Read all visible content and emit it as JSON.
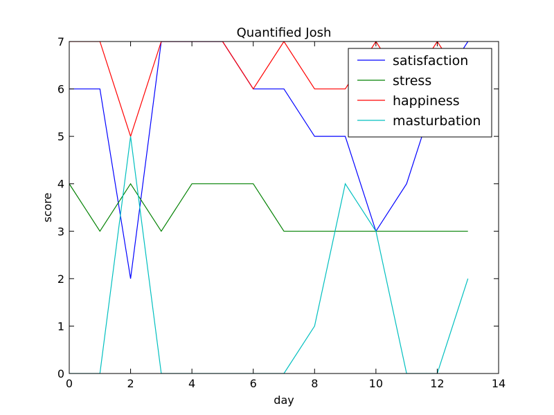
{
  "chart_data": {
    "type": "line",
    "title": "Quantified Josh",
    "xlabel": "day",
    "ylabel": "score",
    "xlim": [
      0,
      14
    ],
    "ylim": [
      0,
      7
    ],
    "x_ticks": [
      0,
      2,
      4,
      6,
      8,
      10,
      12,
      14
    ],
    "y_ticks": [
      0,
      1,
      2,
      3,
      4,
      5,
      6,
      7
    ],
    "grid": false,
    "legend_position": "top-right",
    "x": [
      0,
      1,
      2,
      3,
      4,
      5,
      6,
      7,
      8,
      9,
      10,
      11,
      12,
      13
    ],
    "series": [
      {
        "name": "satisfaction",
        "color": "#0000ff",
        "values": [
          6,
          6,
          2,
          7,
          7,
          7,
          6,
          6,
          5,
          5,
          3,
          4,
          6,
          7
        ]
      },
      {
        "name": "stress",
        "color": "#008000",
        "values": [
          4,
          3,
          4,
          3,
          4,
          4,
          4,
          3,
          3,
          3,
          3,
          3,
          3,
          3
        ]
      },
      {
        "name": "happiness",
        "color": "#ff0000",
        "values": [
          7,
          7,
          5,
          7,
          7,
          7,
          6,
          7,
          6,
          6,
          7,
          6,
          7,
          6
        ]
      },
      {
        "name": "masturbation",
        "color": "#00bfbf",
        "values": [
          0,
          0,
          5,
          0,
          0,
          0,
          0,
          0,
          1,
          4,
          3,
          0,
          0,
          2
        ]
      }
    ]
  }
}
